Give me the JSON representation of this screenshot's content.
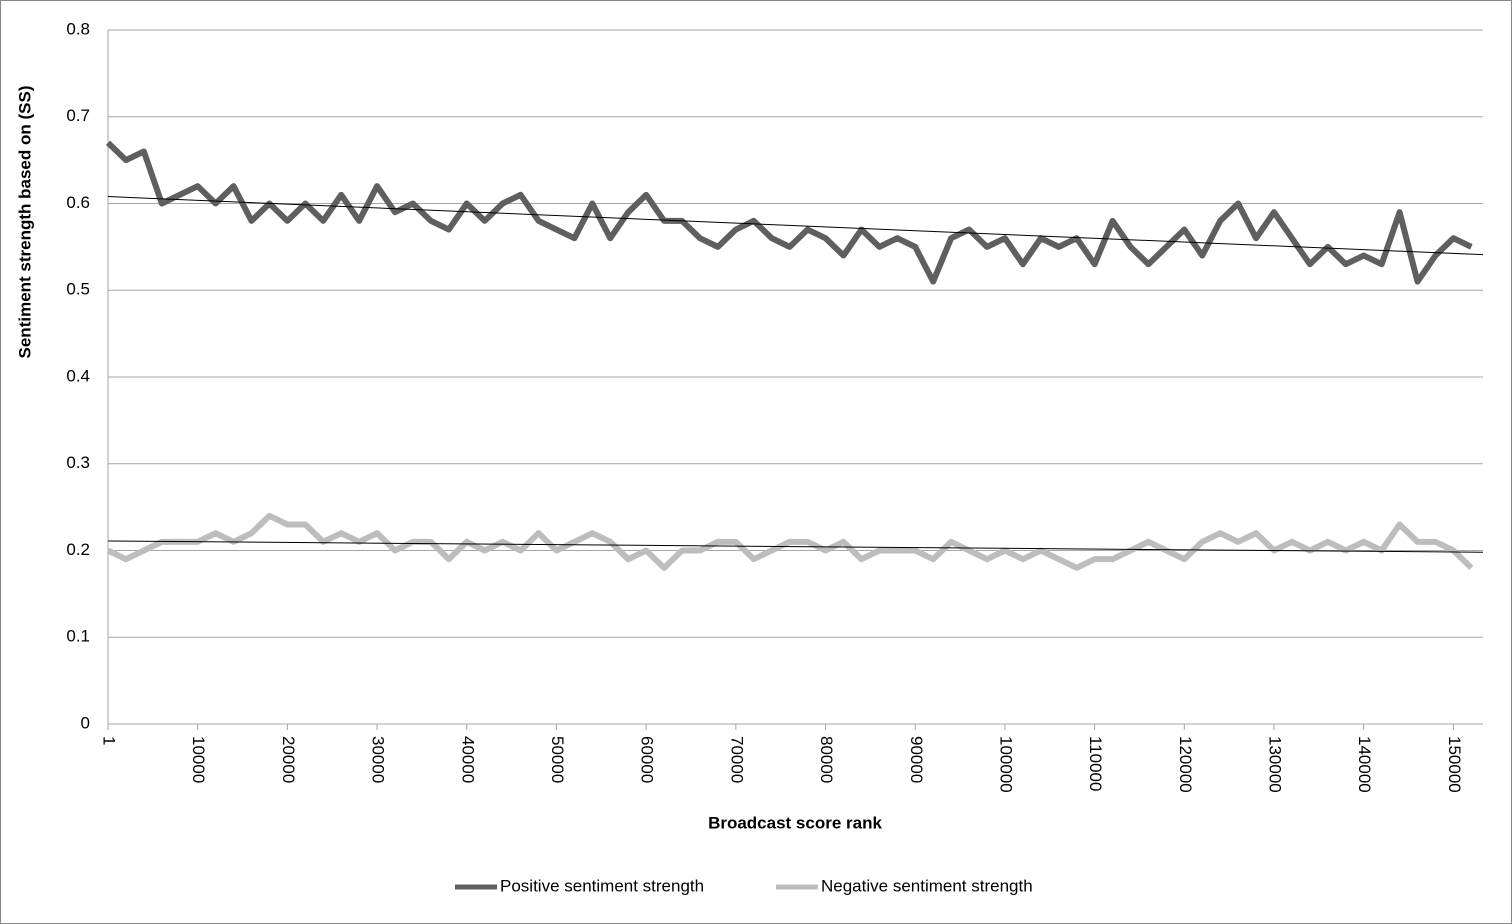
{
  "chart_data": {
    "type": "line",
    "xlabel": "Broadcast score rank",
    "ylabel": "Sentiment strength based on (SS)",
    "x": [
      1,
      2000,
      4000,
      6000,
      8000,
      10000,
      12000,
      14000,
      16000,
      18000,
      20000,
      22000,
      24000,
      26000,
      28000,
      30000,
      32000,
      34000,
      36000,
      38000,
      40000,
      42000,
      44000,
      46000,
      48000,
      50000,
      52000,
      54000,
      56000,
      58000,
      60000,
      62000,
      64000,
      66000,
      68000,
      70000,
      72000,
      74000,
      76000,
      78000,
      80000,
      82000,
      84000,
      86000,
      88000,
      90000,
      92000,
      94000,
      96000,
      98000,
      100000,
      102000,
      104000,
      106000,
      108000,
      110000,
      112000,
      114000,
      116000,
      118000,
      120000,
      122000,
      124000,
      126000,
      128000,
      130000,
      132000,
      134000,
      136000,
      138000,
      140000,
      142000,
      144000,
      146000,
      148000,
      150000,
      152000
    ],
    "series": [
      {
        "name": "Positive sentiment strength",
        "color": "#5f5f5f",
        "values": [
          0.67,
          0.65,
          0.66,
          0.6,
          0.61,
          0.62,
          0.6,
          0.62,
          0.58,
          0.6,
          0.58,
          0.6,
          0.58,
          0.61,
          0.58,
          0.62,
          0.59,
          0.6,
          0.58,
          0.57,
          0.6,
          0.58,
          0.6,
          0.61,
          0.58,
          0.57,
          0.56,
          0.6,
          0.56,
          0.59,
          0.61,
          0.58,
          0.58,
          0.56,
          0.55,
          0.57,
          0.58,
          0.56,
          0.55,
          0.57,
          0.56,
          0.54,
          0.57,
          0.55,
          0.56,
          0.55,
          0.51,
          0.56,
          0.57,
          0.55,
          0.56,
          0.53,
          0.56,
          0.55,
          0.56,
          0.53,
          0.58,
          0.55,
          0.53,
          0.55,
          0.57,
          0.54,
          0.58,
          0.6,
          0.56,
          0.59,
          0.56,
          0.53,
          0.55,
          0.53,
          0.54,
          0.53,
          0.59,
          0.51,
          0.54,
          0.56,
          0.55
        ]
      },
      {
        "name": "Negative sentiment strength",
        "color": "#bdbdbd",
        "values": [
          0.2,
          0.19,
          0.2,
          0.21,
          0.21,
          0.21,
          0.22,
          0.21,
          0.22,
          0.24,
          0.23,
          0.23,
          0.21,
          0.22,
          0.21,
          0.22,
          0.2,
          0.21,
          0.21,
          0.19,
          0.21,
          0.2,
          0.21,
          0.2,
          0.22,
          0.2,
          0.21,
          0.22,
          0.21,
          0.19,
          0.2,
          0.18,
          0.2,
          0.2,
          0.21,
          0.21,
          0.19,
          0.2,
          0.21,
          0.21,
          0.2,
          0.21,
          0.19,
          0.2,
          0.2,
          0.2,
          0.19,
          0.21,
          0.2,
          0.19,
          0.2,
          0.19,
          0.2,
          0.19,
          0.18,
          0.19,
          0.19,
          0.2,
          0.21,
          0.2,
          0.19,
          0.21,
          0.22,
          0.21,
          0.22,
          0.2,
          0.21,
          0.2,
          0.21,
          0.2,
          0.21,
          0.2,
          0.23,
          0.21,
          0.21,
          0.2,
          0.18
        ]
      }
    ],
    "trendlines": [
      {
        "x": [
          1,
          153300
        ],
        "values": [
          0.608,
          0.541
        ],
        "color": "#000000"
      },
      {
        "x": [
          1,
          153300
        ],
        "values": [
          0.211,
          0.198
        ],
        "color": "#000000"
      }
    ],
    "xlim": [
      1,
      153300
    ],
    "xticks": [
      1,
      10000,
      20000,
      30000,
      40000,
      50000,
      60000,
      70000,
      80000,
      90000,
      100000,
      110000,
      120000,
      130000,
      140000,
      150000
    ],
    "ylim": [
      0,
      0.8
    ],
    "yticks": [
      0,
      0.1,
      0.2,
      0.3,
      0.4,
      0.5,
      0.6,
      0.7,
      0.8
    ],
    "grid": true,
    "legend": "bottom"
  }
}
